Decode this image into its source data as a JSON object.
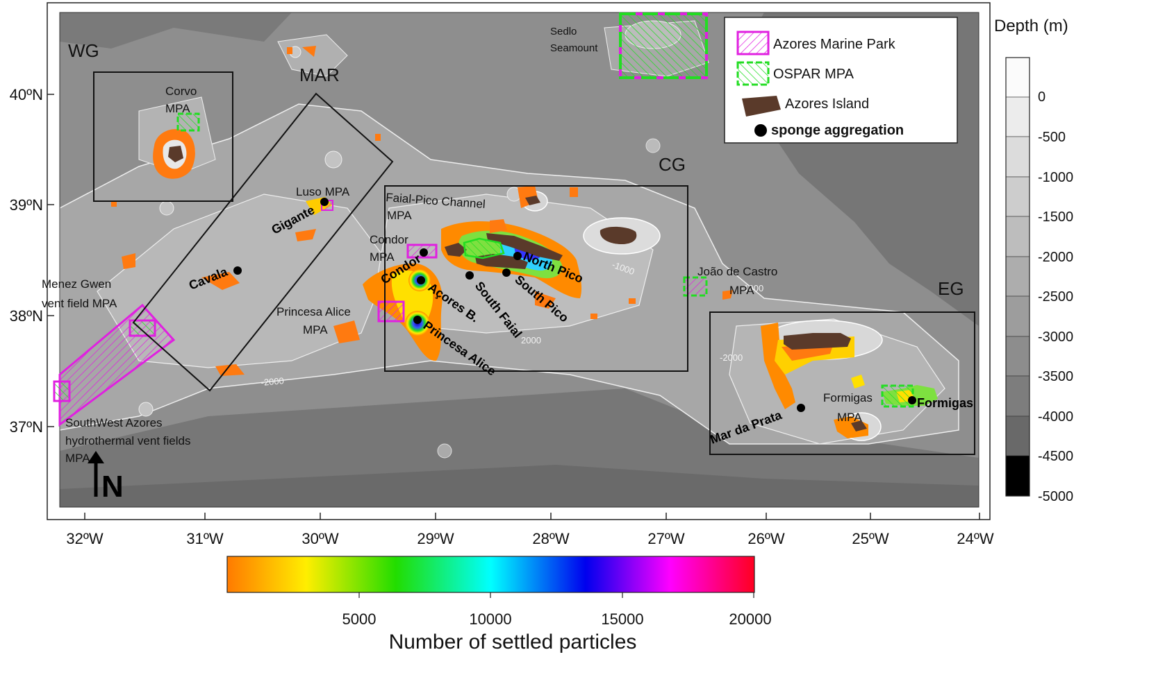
{
  "region_labels": {
    "wg": "WG",
    "mar": "MAR",
    "cg": "CG",
    "eg": "EG"
  },
  "lat_ticks": [
    "40ºN",
    "39ºN",
    "38ºN",
    "37ºN"
  ],
  "lon_ticks": [
    "32ºW",
    "31ºW",
    "30ºW",
    "29ºW",
    "28ºW",
    "27ºW",
    "26ºW",
    "25ºW",
    "24ºW"
  ],
  "mpa_labels": {
    "corvo_1": "Corvo",
    "corvo_2": "MPA",
    "luso": "Luso MPA",
    "faial_pico_1": "Faial-Pico Channel",
    "faial_pico_2": "MPA",
    "condor_1": "Condor",
    "condor_2": "MPA",
    "menez_1": "Menez Gwen",
    "menez_2": "vent field MPA",
    "princesa_1": "Princesa Alice",
    "princesa_2": "MPA",
    "joao_1": "João de Castro",
    "joao_2": "MPA",
    "formigas_1": "Formigas",
    "formigas_2": "MPA",
    "sw_1": "SouthWest Azores",
    "sw_2": "hydrothermal vent fields",
    "sw_3": "MPA",
    "sedlo_1": "Sedlo",
    "sedlo_2": "Seamount"
  },
  "site_labels": {
    "gigante": "Gigante",
    "cavala": "Cavala",
    "condor": "Condor",
    "acores_b": "Açores B.",
    "princesa_alice": "Princesa Alice",
    "south_faial": "South Faial",
    "south_pico": "South Pico",
    "north_pico": "North Pico",
    "mar_da_prata": "Mar da Prata",
    "formigas": "Formigas"
  },
  "contour_labels": {
    "c1000": "-1000",
    "c2000_a": "-2000",
    "c2000_b": "-2000",
    "c2000_c": "2000",
    "c1000_b": "-1000"
  },
  "north_arrow": "N",
  "legend": {
    "marine_park": "Azores Marine Park",
    "ospar": "OSPAR MPA",
    "island": "Azores Island",
    "sponge": "sponge aggregation"
  },
  "depth_scale": {
    "title": "Depth (m)",
    "labels": [
      "0",
      "-500",
      "-1000",
      "-1500",
      "-2000",
      "-2500",
      "-3000",
      "-3500",
      "-4000",
      "-4500",
      "-5000"
    ]
  },
  "particle_scale": {
    "title": "Number of settled particles",
    "ticks": [
      "5000",
      "10000",
      "15000",
      "20000"
    ]
  },
  "colors": {
    "marine_park": "#e020e0",
    "ospar": "#22dd22",
    "island": "#5a3a2a",
    "sponge": "#000000",
    "ocean": "#8e8e8e"
  }
}
